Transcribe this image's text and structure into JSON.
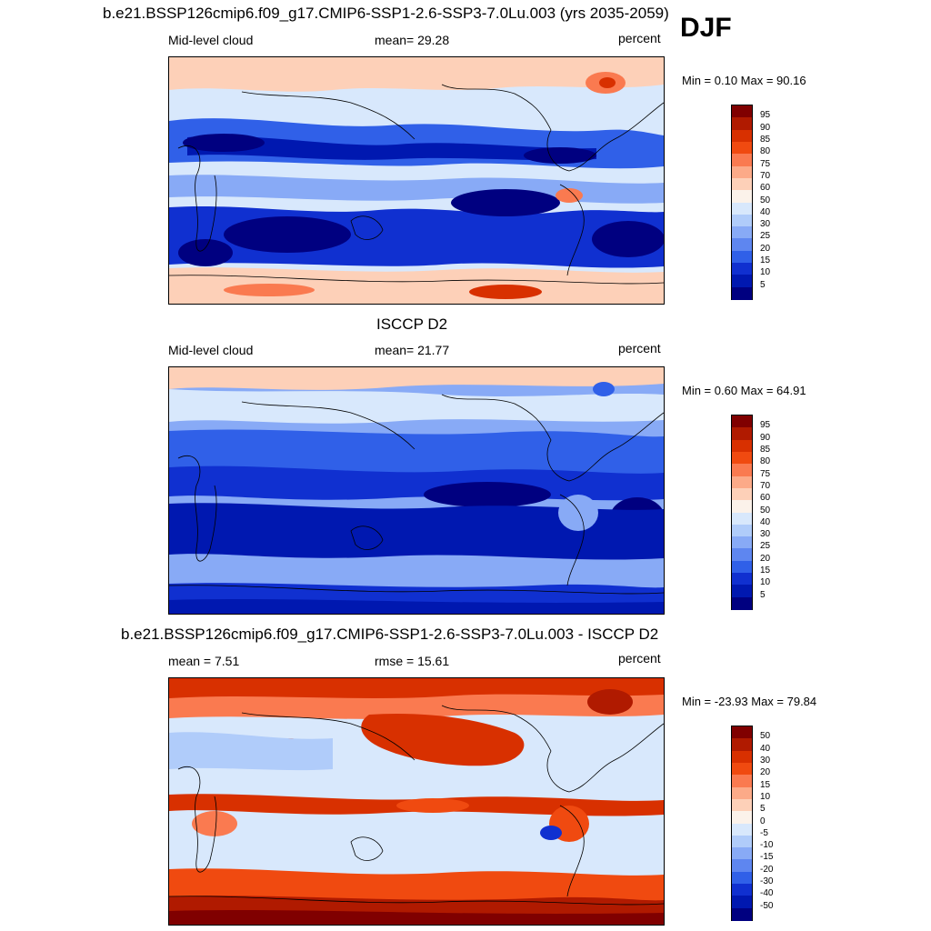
{
  "season": "DJF",
  "panels": [
    {
      "id": "model",
      "title": "b.e21.BSSP126cmip6.f09_g17.CMIP6-SSP1-2.6-SSP3-7.0Lu.003 (yrs 2035-2059)",
      "left_label": "Mid-level cloud",
      "center_label": "mean=  29.28",
      "right_label": "percent",
      "minmax": "Min =   0.10 Max =  90.16",
      "colorbar_levels": [
        "95",
        "90",
        "85",
        "80",
        "75",
        "70",
        "60",
        "50",
        "40",
        "30",
        "25",
        "20",
        "15",
        "10",
        "5"
      ]
    },
    {
      "id": "obs",
      "title": "ISCCP D2",
      "left_label": "Mid-level cloud",
      "center_label": "mean=  21.77",
      "right_label": "percent",
      "minmax": "Min =   0.60 Max =  64.91",
      "colorbar_levels": [
        "95",
        "90",
        "85",
        "80",
        "75",
        "70",
        "60",
        "50",
        "40",
        "30",
        "25",
        "20",
        "15",
        "10",
        "5"
      ]
    },
    {
      "id": "diff",
      "title": "b.e21.BSSP126cmip6.f09_g17.CMIP6-SSP1-2.6-SSP3-7.0Lu.003 - ISCCP D2",
      "left_label": "mean =   7.51",
      "center_label": "rmse =  15.61",
      "right_label": "percent",
      "minmax": "Min = -23.93 Max =  79.84",
      "colorbar_levels": [
        "50",
        "40",
        "30",
        "20",
        "15",
        "10",
        "5",
        "0",
        "-5",
        "-10",
        "-15",
        "-20",
        "-30",
        "-40",
        "-50"
      ]
    }
  ],
  "colors": {
    "abs_scale": [
      "#800000",
      "#b01a00",
      "#d83000",
      "#f04a10",
      "#fa7a50",
      "#fcaa88",
      "#fdd0b8",
      "#fbf2ea",
      "#d8e8fc",
      "#b0ccfa",
      "#88aaf6",
      "#5e86f0",
      "#3060e8",
      "#1030d0",
      "#0018b0",
      "#000080"
    ],
    "diff_scale": [
      "#800000",
      "#b01a00",
      "#d83000",
      "#f04a10",
      "#fa7a50",
      "#fcaa88",
      "#fdd0b8",
      "#fbf2ea",
      "#d8e8fc",
      "#b0ccfa",
      "#88aaf6",
      "#5e86f0",
      "#3060e8",
      "#1030d0",
      "#0018b0",
      "#000080"
    ]
  }
}
